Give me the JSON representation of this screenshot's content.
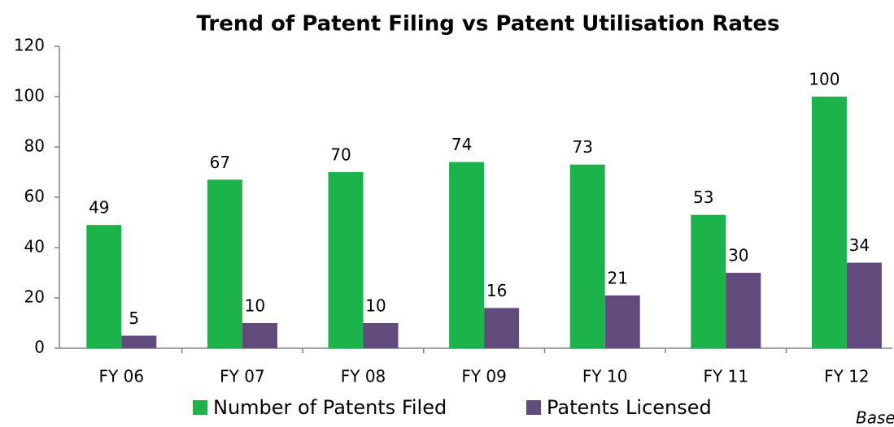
{
  "chart_data": {
    "type": "bar",
    "title": "Trend of Patent Filing vs Patent Utilisation Rates",
    "categories": [
      "FY 06",
      "FY 07",
      "FY 08",
      "FY 09",
      "FY 10",
      "FY 11",
      "FY 12"
    ],
    "series": [
      {
        "name": "Number of Patents Filed",
        "color": "#1db34b",
        "values": [
          49,
          67,
          70,
          74,
          73,
          53,
          100
        ]
      },
      {
        "name": "Patents Licensed",
        "color": "#614a7c",
        "values": [
          5,
          10,
          10,
          16,
          21,
          30,
          34
        ]
      }
    ],
    "ylim": [
      0,
      120
    ],
    "yticks": [
      0,
      20,
      40,
      60,
      80,
      100,
      120
    ],
    "grid": false,
    "legend": "bottom",
    "annotation": "Base"
  }
}
